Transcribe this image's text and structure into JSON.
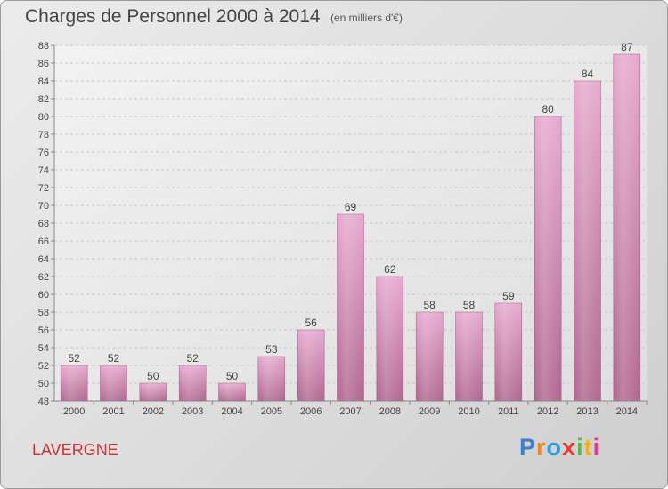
{
  "header": {
    "title": "Charges de Personnel 2000 à 2014",
    "subtitle": "(en milliers d'€)"
  },
  "footer": {
    "commune": "LAVERGNE",
    "logo_letters": [
      "P",
      "r",
      "o",
      "x",
      "i",
      "t",
      "i"
    ]
  },
  "chart_data": {
    "type": "bar",
    "title": "Charges de Personnel 2000 à 2014",
    "subtitle": "(en milliers d'€)",
    "categories": [
      "2000",
      "2001",
      "2002",
      "2003",
      "2004",
      "2005",
      "2006",
      "2007",
      "2008",
      "2009",
      "2010",
      "2011",
      "2012",
      "2013",
      "2014"
    ],
    "values": [
      52,
      52,
      50,
      52,
      50,
      53,
      56,
      69,
      62,
      58,
      58,
      59,
      80,
      84,
      87
    ],
    "xlabel": "",
    "ylabel": "",
    "ylim": [
      48,
      88
    ],
    "ytick_step": 2,
    "grid": true,
    "bar_color": "#d792bb"
  }
}
